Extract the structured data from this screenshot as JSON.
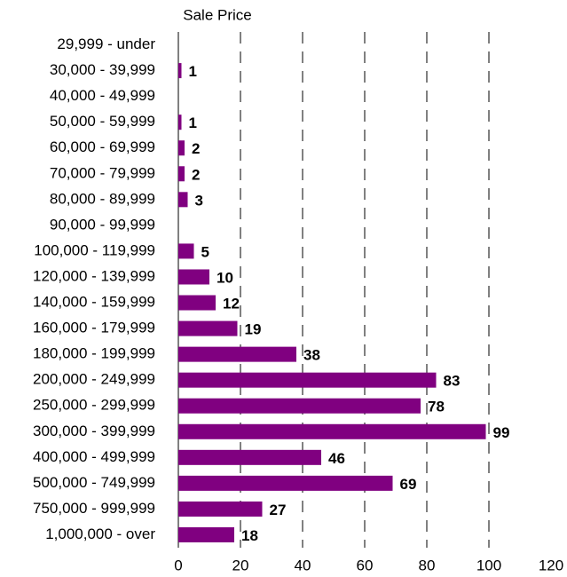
{
  "chart_data": {
    "type": "bar",
    "orientation": "horizontal",
    "title": "Sale Price",
    "categories": [
      "29,999 - under",
      "30,000 - 39,999",
      "40,000 - 49,999",
      "50,000 - 59,999",
      "60,000 - 69,999",
      "70,000 - 79,999",
      "80,000 - 89,999",
      "90,000 - 99,999",
      "100,000 - 119,999",
      "120,000 - 139,999",
      "140,000 - 159,999",
      "160,000 - 179,999",
      "180,000 - 199,999",
      "200,000 - 249,999",
      "250,000 - 299,999",
      "300,000 - 399,999",
      "400,000 - 499,999",
      "500,000 - 749,999",
      "750,000 - 999,999",
      "1,000,000 - over"
    ],
    "values": [
      null,
      1,
      null,
      1,
      2,
      2,
      3,
      null,
      5,
      10,
      12,
      19,
      38,
      83,
      78,
      99,
      46,
      69,
      27,
      18
    ],
    "color": "#800080",
    "xlim": [
      0,
      120
    ],
    "xticks": [
      0,
      20,
      40,
      60,
      80,
      100,
      120
    ],
    "grid": true
  }
}
